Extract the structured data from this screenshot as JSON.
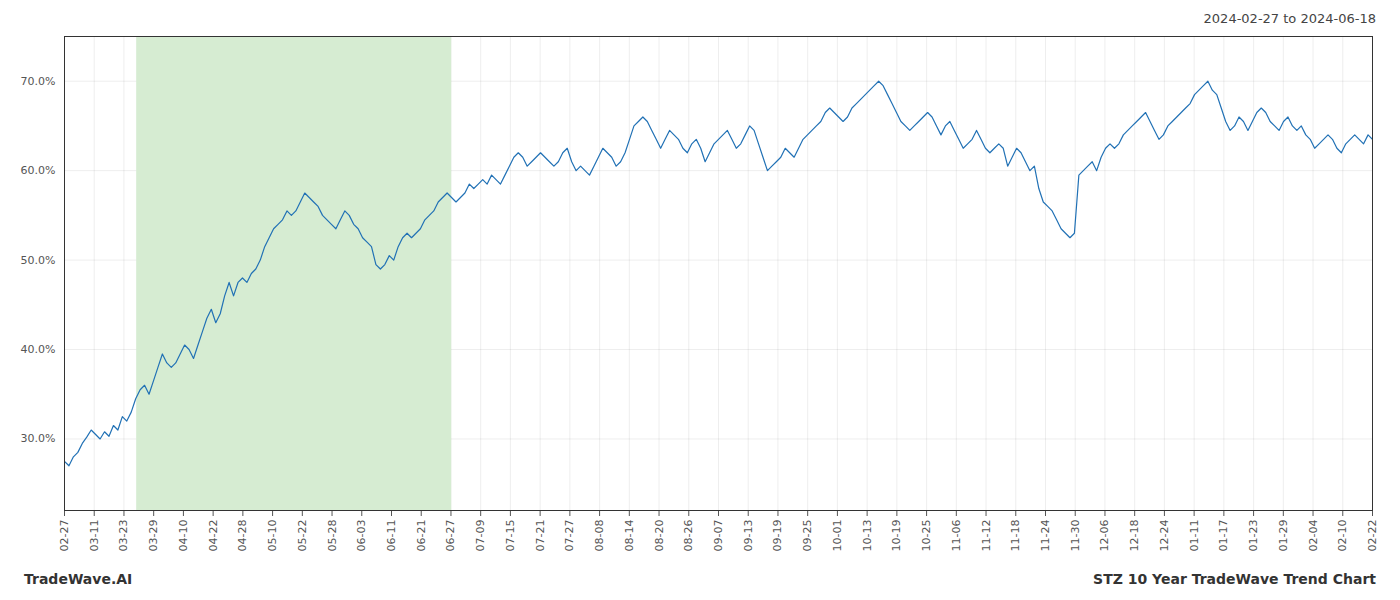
{
  "chart_data": {
    "type": "line",
    "title": "STZ 10 Year TradeWave Trend Chart",
    "subtitle": "2024-02-27 to 2024-06-18",
    "caption": "TradeWave.AI",
    "color": "#2171b5",
    "grid": true,
    "ylim": [
      22,
      75
    ],
    "yticks": [
      {
        "value": 30,
        "label": "30.0%"
      },
      {
        "value": 40,
        "label": "40.0%"
      },
      {
        "value": 50,
        "label": "50.0%"
      },
      {
        "value": 60,
        "label": "60.0%"
      },
      {
        "value": 70,
        "label": "70.0%"
      }
    ],
    "xlim": [
      0,
      294
    ],
    "xticks": [
      {
        "value": 0,
        "label": "02-27"
      },
      {
        "value": 6.681818181818182,
        "label": "03-11"
      },
      {
        "value": 13.363636363636363,
        "label": "03-23"
      },
      {
        "value": 20.045454545454547,
        "label": "03-29"
      },
      {
        "value": 26.727272727272727,
        "label": "04-10"
      },
      {
        "value": 33.40909090909091,
        "label": "04-22"
      },
      {
        "value": 40.09090909090909,
        "label": "04-28"
      },
      {
        "value": 46.77272727272727,
        "label": "05-10"
      },
      {
        "value": 53.45454545454545,
        "label": "05-22"
      },
      {
        "value": 60.13636363636363,
        "label": "05-28"
      },
      {
        "value": 66.81818181818181,
        "label": "06-03"
      },
      {
        "value": 73.5,
        "label": "06-11"
      },
      {
        "value": 80.18181818181819,
        "label": "06-21"
      },
      {
        "value": 86.86363636363636,
        "label": "06-27"
      },
      {
        "value": 93.54545454545455,
        "label": "07-09"
      },
      {
        "value": 100.22727272727272,
        "label": "07-15"
      },
      {
        "value": 106.9090909090909,
        "label": "07-21"
      },
      {
        "value": 113.5909090909091,
        "label": "07-27"
      },
      {
        "value": 120.27272727272727,
        "label": "08-08"
      },
      {
        "value": 126.95454545454545,
        "label": "08-14"
      },
      {
        "value": 133.63636363636363,
        "label": "08-20"
      },
      {
        "value": 140.3181818181818,
        "label": "08-26"
      },
      {
        "value": 147,
        "label": "09-07"
      },
      {
        "value": 153.6818181818182,
        "label": "09-13"
      },
      {
        "value": 160.36363636363637,
        "label": "09-19"
      },
      {
        "value": 167.04545454545453,
        "label": "09-25"
      },
      {
        "value": 173.72727272727272,
        "label": "10-01"
      },
      {
        "value": 180.4090909090909,
        "label": "10-13"
      },
      {
        "value": 187.0909090909091,
        "label": "10-19"
      },
      {
        "value": 193.77272727272728,
        "label": "10-25"
      },
      {
        "value": 200.45454545454547,
        "label": "11-06"
      },
      {
        "value": 207.13636363636363,
        "label": "11-12"
      },
      {
        "value": 213.8181818181818,
        "label": "11-18"
      },
      {
        "value": 220.5,
        "label": "11-24"
      },
      {
        "value": 227.1818181818182,
        "label": "11-30"
      },
      {
        "value": 233.86363636363637,
        "label": "12-06"
      },
      {
        "value": 240.54545454545453,
        "label": "12-18"
      },
      {
        "value": 247.22727272727272,
        "label": "12-24"
      },
      {
        "value": 253.9090909090909,
        "label": "01-11"
      },
      {
        "value": 260.59090909090907,
        "label": "01-17"
      },
      {
        "value": 267.27272727272725,
        "label": "01-23"
      },
      {
        "value": 273.95454545454544,
        "label": "01-29"
      },
      {
        "value": 280.6363636363636,
        "label": "02-04"
      },
      {
        "value": 287.3181818181818,
        "label": "02-10"
      },
      {
        "value": 294,
        "label": "02-22"
      }
    ],
    "spans": [
      {
        "x1": 16.225,
        "x2": 87.025,
        "color": "#d6ecd2"
      }
    ],
    "values": [
      27.5,
      27.0,
      28.0,
      28.5,
      29.5,
      30.2,
      31.0,
      30.5,
      30.0,
      30.8,
      30.3,
      31.5,
      31.0,
      32.5,
      32.0,
      33.0,
      34.5,
      35.5,
      36.0,
      35.0,
      36.5,
      38.0,
      39.5,
      38.5,
      38.0,
      38.5,
      39.5,
      40.5,
      40.0,
      39.0,
      40.5,
      42.0,
      43.5,
      44.5,
      43.0,
      44.0,
      46.0,
      47.5,
      46.0,
      47.5,
      48.0,
      47.5,
      48.5,
      49.0,
      50.0,
      51.5,
      52.5,
      53.5,
      54.0,
      54.5,
      55.5,
      55.0,
      55.5,
      56.5,
      57.5,
      57.0,
      56.5,
      56.0,
      55.0,
      54.5,
      54.0,
      53.5,
      54.5,
      55.5,
      55.0,
      54.0,
      53.5,
      52.5,
      52.0,
      51.5,
      49.5,
      49.0,
      49.5,
      50.5,
      50.0,
      51.5,
      52.5,
      53.0,
      52.5,
      53.0,
      53.5,
      54.5,
      55.0,
      55.5,
      56.5,
      57.0,
      57.5,
      57.0,
      56.5,
      57.0,
      57.5,
      58.5,
      58.0,
      58.5,
      59.0,
      58.5,
      59.5,
      59.0,
      58.5,
      59.5,
      60.5,
      61.5,
      62.0,
      61.5,
      60.5,
      61.0,
      61.5,
      62.0,
      61.5,
      61.0,
      60.5,
      61.0,
      62.0,
      62.5,
      61.0,
      60.0,
      60.5,
      60.0,
      59.5,
      60.5,
      61.5,
      62.5,
      62.0,
      61.5,
      60.5,
      61.0,
      62.0,
      63.5,
      65.0,
      65.5,
      66.0,
      65.5,
      64.5,
      63.5,
      62.5,
      63.5,
      64.5,
      64.0,
      63.5,
      62.5,
      62.0,
      63.0,
      63.5,
      62.5,
      61.0,
      62.0,
      63.0,
      63.5,
      64.0,
      64.5,
      63.5,
      62.5,
      63.0,
      64.0,
      65.0,
      64.5,
      63.0,
      61.5,
      60.0,
      60.5,
      61.0,
      61.5,
      62.5,
      62.0,
      61.5,
      62.5,
      63.5,
      64.0,
      64.5,
      65.0,
      65.5,
      66.5,
      67.0,
      66.5,
      66.0,
      65.5,
      66.0,
      67.0,
      67.5,
      68.0,
      68.5,
      69.0,
      69.5,
      70.0,
      69.5,
      68.5,
      67.5,
      66.5,
      65.5,
      65.0,
      64.5,
      65.0,
      65.5,
      66.0,
      66.5,
      66.0,
      65.0,
      64.0,
      65.0,
      65.5,
      64.5,
      63.5,
      62.5,
      63.0,
      63.5,
      64.5,
      63.5,
      62.5,
      62.0,
      62.5,
      63.0,
      62.5,
      60.5,
      61.5,
      62.5,
      62.0,
      61.0,
      60.0,
      60.5,
      58.0,
      56.5,
      56.0,
      55.5,
      54.5,
      53.5,
      53.0,
      52.5,
      53.0,
      59.5,
      60.0,
      60.5,
      61.0,
      60.0,
      61.5,
      62.5,
      63.0,
      62.5,
      63.0,
      64.0,
      64.5,
      65.0,
      65.5,
      66.0,
      66.5,
      65.5,
      64.5,
      63.5,
      64.0,
      65.0,
      65.5,
      66.0,
      66.5,
      67.0,
      67.5,
      68.5,
      69.0,
      69.5,
      70.0,
      69.0,
      68.5,
      67.0,
      65.5,
      64.5,
      65.0,
      66.0,
      65.5,
      64.5,
      65.5,
      66.5,
      67.0,
      66.5,
      65.5,
      65.0,
      64.5,
      65.5,
      66.0,
      65.0,
      64.5,
      65.0,
      64.0,
      63.5,
      62.5,
      63.0,
      63.5,
      64.0,
      63.5,
      62.5,
      62.0,
      63.0,
      63.5,
      64.0,
      63.5,
      63.0,
      64.0,
      63.5
    ]
  }
}
